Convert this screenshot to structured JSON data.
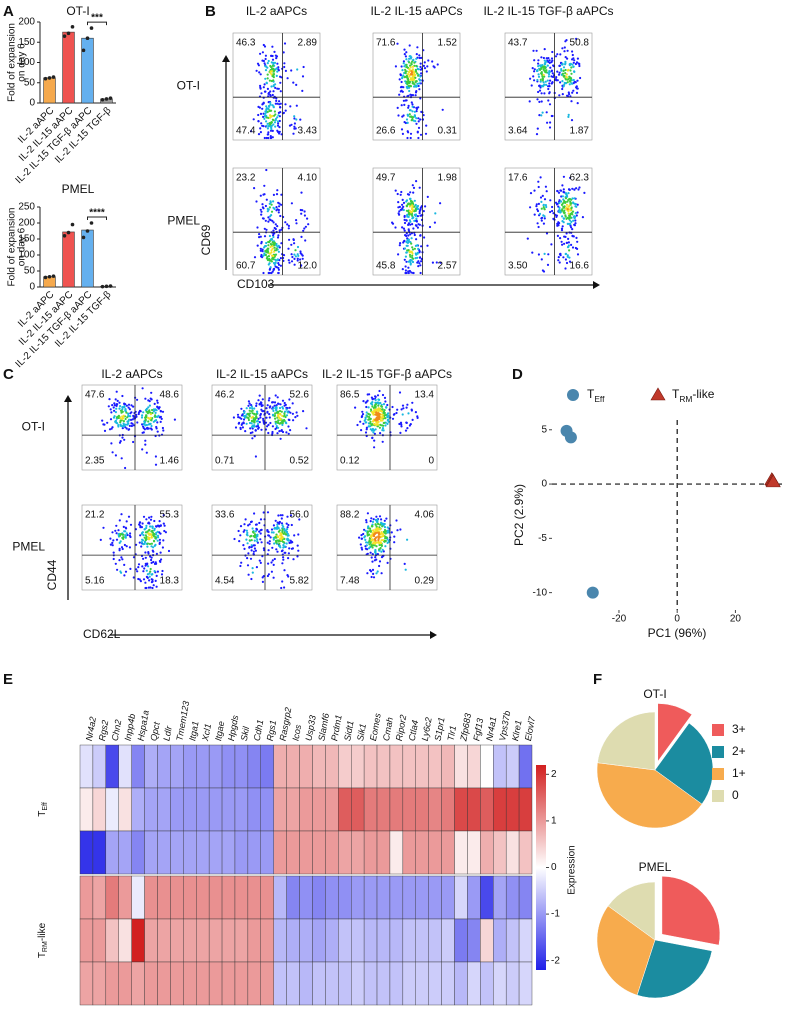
{
  "chart_data": [
    {
      "type": "bar",
      "panel": "A",
      "title": "OT-I",
      "ylabel": [
        "Fold of expansion",
        "on day 6"
      ],
      "categories": [
        "IL-2 aAPC",
        "IL-2 IL-15 aAPC",
        "IL-2 IL-15 TGF-β aAPC",
        "IL-2 IL-15 TGF-β"
      ],
      "values": [
        62,
        175,
        160,
        10
      ],
      "points": [
        [
          60,
          62,
          64
        ],
        [
          165,
          172,
          188
        ],
        [
          130,
          160,
          185
        ],
        [
          8,
          10,
          12
        ]
      ],
      "colors": [
        "#f5a94d",
        "#ef5350",
        "#64b0ef",
        "#9e9e9e"
      ],
      "ylim": [
        0,
        200
      ],
      "yticks": [
        0,
        50,
        100,
        150,
        200
      ],
      "significance": "***"
    },
    {
      "type": "bar",
      "title": "PMEL",
      "ylabel": [
        "Fold of expansion",
        "on day 6"
      ],
      "categories": [
        "IL-2 aAPC",
        "IL-2 IL-15 aAPC",
        "IL-2 IL-15 TGF-β aAPC",
        "IL-2 IL-15 TGF-β"
      ],
      "values": [
        32,
        172,
        178,
        2
      ],
      "points": [
        [
          30,
          32,
          34
        ],
        [
          160,
          170,
          195
        ],
        [
          155,
          175,
          200
        ],
        [
          1,
          2,
          3
        ]
      ],
      "colors": [
        "#f5a94d",
        "#ef5350",
        "#64b0ef",
        "#9e9e9e"
      ],
      "ylim": [
        0,
        250
      ],
      "yticks": [
        0,
        50,
        100,
        150,
        200,
        250
      ],
      "significance": "****"
    },
    {
      "type": "flow",
      "panel": "B",
      "columns": [
        "IL-2 aAPCs",
        "IL-2 IL-15 aAPCs",
        "IL-2 IL-15 TGF-β aAPCs"
      ],
      "rows": [
        "OT-I",
        "PMEL"
      ],
      "xlabel": "CD103",
      "ylabel": "CD69",
      "quadrants": [
        [
          [
            "46.3",
            "2.89",
            "47.4",
            "3.43"
          ],
          [
            "71.6",
            "1.52",
            "26.6",
            "0.31"
          ],
          [
            "43.7",
            "50.8",
            "3.64",
            "1.87"
          ]
        ],
        [
          [
            "23.2",
            "4.10",
            "60.7",
            "12.0"
          ],
          [
            "49.7",
            "1.98",
            "45.8",
            "2.57"
          ],
          [
            "17.6",
            "62.3",
            "3.50",
            "16.6"
          ]
        ]
      ]
    },
    {
      "type": "flow",
      "panel": "C",
      "columns": [
        "IL-2 aAPCs",
        "IL-2 IL-15 aAPCs",
        "IL-2 IL-15 TGF-β aAPCs"
      ],
      "rows": [
        "OT-I",
        "PMEL"
      ],
      "xlabel": "CD62L",
      "ylabel": "CD44",
      "quadrants": [
        [
          [
            "47.6",
            "48.6",
            "2.35",
            "1.46"
          ],
          [
            "46.2",
            "52.6",
            "0.71",
            "0.52"
          ],
          [
            "86.5",
            "13.4",
            "0.12",
            "0"
          ]
        ],
        [
          [
            "21.2",
            "55.3",
            "5.16",
            "18.3"
          ],
          [
            "33.6",
            "56.0",
            "4.54",
            "5.82"
          ],
          [
            "88.2",
            "4.06",
            "7.48",
            "0.29"
          ]
        ]
      ]
    },
    {
      "type": "scatter",
      "panel": "D",
      "xlabel": "PC1 (96%)",
      "ylabel": "PC2 (2.9%)",
      "xlim": [
        -43,
        36
      ],
      "ylim": [
        -11.6,
        5.9
      ],
      "xticks": [
        -20,
        0,
        20
      ],
      "yticks": [
        -10,
        -5,
        0,
        5
      ],
      "series": [
        {
          "name": "T",
          "name_sub": "Eff",
          "marker": "circle",
          "color": "#4a86ad",
          "x": [
            -38,
            -36.5,
            -29
          ],
          "y": [
            4.9,
            4.3,
            -10
          ]
        },
        {
          "name": "T",
          "name_sub": "RM",
          "name_suffix": "-like",
          "marker": "triangle",
          "color": "#c0392b",
          "x": [
            32.5,
            32.8,
            33
          ],
          "y": [
            0.4,
            0.3,
            0.2
          ]
        }
      ]
    },
    {
      "type": "heatmap",
      "panel": "E",
      "genes": [
        "Nr4a2",
        "Rgs2",
        "Chn2",
        "Inpp4b",
        "Hspa1a",
        "Qpct",
        "Ldlr",
        "Tmem123",
        "Itga1",
        "Xcl1",
        "Itgae",
        "Hpgds",
        "Skil",
        "Cdh1",
        "Rgs1",
        "Rasgrp2",
        "Icos",
        "Usp33",
        "Slamf6",
        "Prdm1",
        "Sidt1",
        "Sik1",
        "Eomes",
        "Cmah",
        "Ripor2",
        "Ctla4",
        "Ly6c2",
        "S1pr1",
        "Tlr1",
        "Zfp683",
        "Fgf13",
        "Nr4a1",
        "Vps37b",
        "Klre1",
        "Elovl7"
      ],
      "row_groups": [
        {
          "name": "T",
          "name_sub": "Eff"
        },
        {
          "name": "T",
          "name_sub": "RM",
          "name_suffix": "-like"
        }
      ],
      "values": [
        [
          -0.3,
          -0.5,
          -1.8,
          -0.3,
          -1.2,
          -0.8,
          -0.9,
          -0.9,
          -1,
          -1,
          -1,
          -1.1,
          -1.1,
          -1.2,
          -1.3,
          0.8,
          0.8,
          0.8,
          0.7,
          0.7,
          0.5,
          0.5,
          0.6,
          0.6,
          0.6,
          0.6,
          0.6,
          0.6,
          0.7,
          0.3,
          0.4,
          0,
          -0.6,
          -0.5,
          -1.4
        ],
        [
          0.2,
          0.4,
          -0.2,
          0.3,
          -0.8,
          -0.9,
          -0.9,
          -1,
          -1,
          -1,
          -1,
          -1,
          -1,
          -1.1,
          -1.1,
          0.9,
          0.9,
          1,
          1,
          1,
          1.6,
          1.6,
          1.3,
          1.3,
          1.3,
          1.3,
          1.3,
          1.2,
          1.3,
          1.8,
          1.8,
          1.6,
          1.9,
          1.9,
          1.9
        ],
        [
          -2,
          -2,
          -0.9,
          -0.9,
          -1.2,
          -0.9,
          -0.9,
          -0.9,
          -0.9,
          -0.9,
          -0.9,
          -0.9,
          -1,
          -1,
          -1,
          1,
          1,
          1,
          1,
          1,
          0.9,
          0.9,
          1,
          1,
          0.2,
          1,
          1,
          1,
          1,
          0.2,
          0.2,
          0.8,
          0.6,
          0.3,
          0.6
        ],
        [
          1,
          0.9,
          1.3,
          1,
          -0.2,
          1.1,
          1.1,
          1.1,
          1.1,
          1.1,
          1.1,
          1.1,
          1.1,
          1.1,
          1.1,
          -0.7,
          -1.2,
          -1.1,
          -1.2,
          -1.1,
          -1.1,
          -1,
          -1,
          -1,
          -1,
          -1,
          -1,
          -1,
          -1,
          -0.4,
          -1,
          -1.8,
          -0.9,
          -1.1,
          -1.2
        ],
        [
          1,
          1,
          0.6,
          0.3,
          2.2,
          0.9,
          0.9,
          0.9,
          0.9,
          0.9,
          0.9,
          0.9,
          0.9,
          1,
          1,
          -0.7,
          -0.8,
          -0.8,
          -0.9,
          -0.8,
          -0.6,
          -0.6,
          -0.7,
          -0.7,
          -0.7,
          -0.6,
          -0.6,
          -0.6,
          -0.5,
          -1.3,
          -1.2,
          0.4,
          -0.8,
          -0.6,
          -0.4
        ],
        [
          0.9,
          0.9,
          1,
          1,
          0.9,
          1,
          1,
          1,
          1,
          1,
          1,
          1,
          1,
          1,
          1,
          -0.6,
          -0.6,
          -0.7,
          -0.6,
          -0.6,
          -0.6,
          -0.5,
          -0.6,
          -0.6,
          -0.6,
          -0.5,
          -0.5,
          -0.5,
          -0.5,
          -0.7,
          -0.4,
          -0.6,
          -0.4,
          -0.5,
          -0.4
        ]
      ],
      "clim": [
        -2.2,
        2.2
      ],
      "cticks": [
        -2,
        -1,
        0,
        1,
        2
      ],
      "clabel": "Expression"
    },
    {
      "type": "pie",
      "panel": "F",
      "categories": [
        "3+",
        "2+",
        "1+",
        "0"
      ],
      "colors": [
        "#ef5b5b",
        "#1b8ca0",
        "#f7ab4d",
        "#dedcb0"
      ],
      "pies": [
        {
          "title": "OT-I",
          "values": [
            10,
            25,
            42,
            23
          ]
        },
        {
          "title": "PMEL",
          "values": [
            28,
            27,
            30,
            15
          ]
        }
      ]
    }
  ]
}
